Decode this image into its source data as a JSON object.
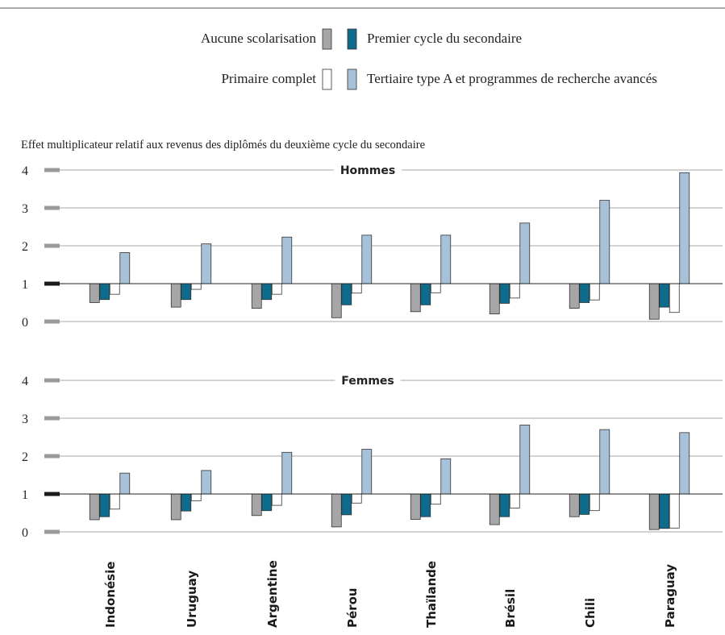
{
  "chart_data": {
    "type": "bar",
    "ylabel": "Effet multiplicateur relatif aux revenus des diplômés du deuxième cycle du secondaire",
    "baseline": 1,
    "ylim": [
      0,
      4
    ],
    "yticks": [
      "0",
      "1",
      "2",
      "3",
      "4"
    ],
    "legend_placement": "top-center",
    "categories": [
      "Indonésie",
      "Uruguay",
      "Argentine",
      "Pérou",
      "Thaïlande",
      "Brésil",
      "Chili",
      "Paraguay"
    ],
    "series_styles": [
      {
        "name": "Aucune scolarisation",
        "color": "#a6a6a8"
      },
      {
        "name": "Premier cycle du secondaire",
        "color": "#0f6b8c"
      },
      {
        "name": "Primaire complet",
        "color": "#ffffff"
      },
      {
        "name": "Tertiaire type A et programmes de recherche avancés",
        "color": "#a7c1d8"
      }
    ],
    "panels": [
      {
        "title": "Hommes",
        "series": [
          {
            "name": "Aucune scolarisation",
            "values": [
              0.5,
              0.38,
              0.35,
              0.1,
              0.26,
              0.2,
              0.35,
              0.06
            ]
          },
          {
            "name": "Premier cycle du secondaire",
            "values": [
              0.58,
              0.58,
              0.58,
              0.44,
              0.44,
              0.48,
              0.5,
              0.38
            ]
          },
          {
            "name": "Primaire complet",
            "values": [
              0.72,
              0.85,
              0.72,
              0.75,
              0.76,
              0.62,
              0.57,
              0.24
            ]
          },
          {
            "name": "Tertiaire type A et programmes de recherche avancés",
            "values": [
              1.82,
              2.05,
              2.23,
              2.28,
              2.28,
              2.6,
              3.2,
              3.93
            ]
          }
        ]
      },
      {
        "title": "Femmes",
        "series": [
          {
            "name": "Aucune scolarisation",
            "values": [
              0.32,
              0.32,
              0.43,
              0.13,
              0.33,
              0.19,
              0.4,
              0.06
            ]
          },
          {
            "name": "Premier cycle du secondaire",
            "values": [
              0.4,
              0.55,
              0.56,
              0.45,
              0.4,
              0.4,
              0.46,
              0.09
            ]
          },
          {
            "name": "Primaire complet",
            "values": [
              0.6,
              0.82,
              0.7,
              0.76,
              0.73,
              0.63,
              0.56,
              0.1
            ]
          },
          {
            "name": "Tertiaire type A et programmes de recherche avancés",
            "values": [
              1.55,
              1.62,
              2.1,
              2.18,
              1.93,
              2.82,
              2.7,
              2.62
            ]
          }
        ]
      }
    ]
  }
}
